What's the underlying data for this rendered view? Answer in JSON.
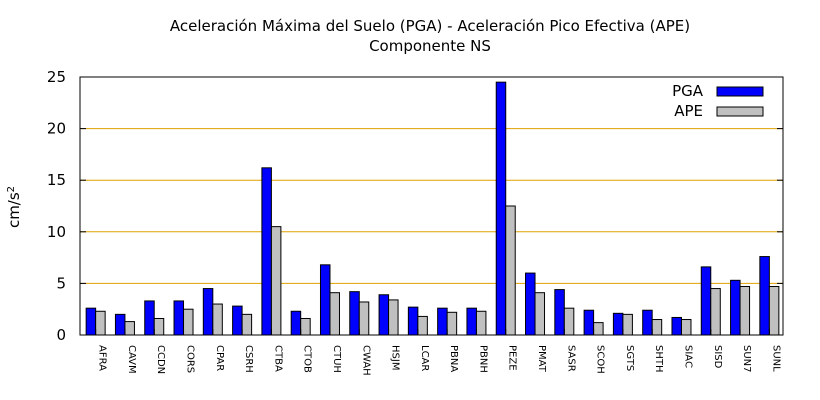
{
  "chart_data": {
    "type": "bar",
    "title": "Aceleración Máxima del Suelo (PGA) -  Aceleración Pico Efectiva (APE)",
    "subtitle": "Componente NS",
    "ylabel": "cm/s",
    "ylabel_sup": "2",
    "ylim": [
      0,
      25
    ],
    "yticks": [
      "0",
      "5",
      "10",
      "15",
      "20",
      "25"
    ],
    "grid": true,
    "legend_position": "top-right",
    "categories": [
      "AFRA",
      "CAVM",
      "CCDN",
      "CORS",
      "CPAR",
      "CSRH",
      "CTBA",
      "CTOB",
      "CTUH",
      "CWAH",
      "HSJM",
      "LCAR",
      "PBNA",
      "PBNH",
      "PEZE",
      "PMAT",
      "SASR",
      "SCOH",
      "SGTS",
      "SHTH",
      "SIAC",
      "SISD",
      "SUN7",
      "SUNL"
    ],
    "series": [
      {
        "name": "PGA",
        "color": "#0000ff",
        "values": [
          2.6,
          2.0,
          3.3,
          3.3,
          4.5,
          2.8,
          16.2,
          2.3,
          6.8,
          4.2,
          3.9,
          2.7,
          2.6,
          2.6,
          24.5,
          6.0,
          4.4,
          2.4,
          2.1,
          2.4,
          1.7,
          6.6,
          5.3,
          7.6
        ]
      },
      {
        "name": "APE",
        "color": "#c0c0c0",
        "values": [
          2.3,
          1.3,
          1.6,
          2.5,
          3.0,
          2.0,
          10.5,
          1.6,
          4.1,
          3.2,
          3.4,
          1.8,
          2.2,
          2.3,
          12.5,
          4.1,
          2.6,
          1.2,
          2.0,
          1.5,
          1.5,
          4.5,
          4.7,
          4.7
        ]
      }
    ],
    "grid_color": "#e0a000"
  }
}
